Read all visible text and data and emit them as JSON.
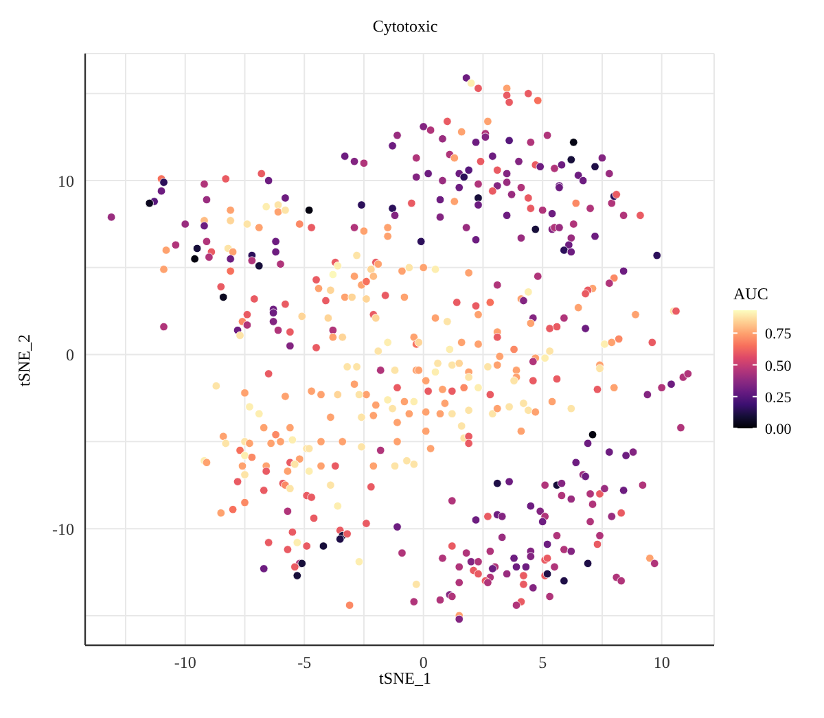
{
  "chart_data": {
    "type": "scatter",
    "title": "Cytotoxic",
    "xlabel": "tSNE_1",
    "ylabel": "tSNE_2",
    "clabel": "AUC",
    "xlim": [
      -14.2,
      12.2
    ],
    "ylim": [
      -16.7,
      17.3
    ],
    "xticks": [
      {
        "value": -12.5,
        "label": null
      },
      -10,
      {
        "value": -7.5,
        "label": null
      },
      -5,
      {
        "value": -2.5,
        "label": null
      },
      0,
      {
        "value": 2.5,
        "label": null
      },
      5,
      {
        "value": 7.5,
        "label": null
      },
      10
    ],
    "yticks": [
      {
        "value": -15,
        "label": null
      },
      -10,
      {
        "value": -5,
        "label": null
      },
      0,
      {
        "value": 5,
        "label": null
      },
      10,
      {
        "value": 15,
        "label": null
      }
    ],
    "clim": [
      0,
      0.93
    ],
    "cticks": [
      {
        "value": 0,
        "label": "0.00"
      },
      {
        "value": 0.25,
        "label": "0.25"
      },
      {
        "value": 0.5,
        "label": "0.50"
      },
      {
        "value": 0.75,
        "label": "0.75"
      }
    ],
    "grid": true,
    "marker": "circle",
    "x": [
      -13.1,
      -11.0,
      -10.9,
      -11.0,
      -11.3,
      -11.5,
      -10.0,
      -9.2,
      -9.1,
      -8.3,
      -6.8,
      -6.5,
      -5.8,
      -9.2,
      -9.2,
      -8.1,
      -8.1,
      -7.4,
      -6.9,
      -6.6,
      -6.1,
      -6.1,
      -5.8,
      -4.8,
      -5.2,
      -4.7,
      -2.6,
      -1.3,
      -1.2,
      -2.9,
      -2.5,
      -1.5,
      -1.5,
      -0.5,
      -0.1,
      -3.3,
      -2.9,
      -2.5,
      -1.3,
      -1.1,
      0,
      -0.3,
      -0.3,
      0.2,
      -10.8,
      -10.4,
      -10.9,
      -9.5,
      -9.6,
      -9.1,
      -8.9,
      -9.0,
      -8.2,
      -8.0,
      -8.1,
      -8.1,
      -7.2,
      -7.2,
      -6.9,
      -6.2,
      -6.2,
      -6.0,
      -8.5,
      -8.4,
      -7.1,
      -10.9,
      -7.4,
      -7.6,
      -7.4,
      -7.8,
      -7.7,
      -6.3,
      -6.3,
      -6.3,
      -6.1,
      -5.8,
      -5.6,
      -5.6,
      -4.5,
      -5.1,
      -4.5,
      -4.4,
      -4.1,
      -3.9,
      -3.7,
      -3.6,
      -3.8,
      -4.0,
      -3.8,
      -3.8,
      -3.4,
      -3.3,
      -3.0,
      -2.9,
      -2.8,
      -2.6,
      -2.4,
      -2.4,
      -2.2,
      -2.0,
      -1.9,
      -2.1,
      -2.1,
      -2.0,
      -1.6,
      -0.9,
      -0.6,
      -0.8,
      -1.9,
      -1.5,
      -0.4,
      -0.3,
      0,
      1.8,
      2.0,
      2.3,
      3.5,
      3.5,
      3.6,
      4.4,
      4.8,
      2.7,
      1.0,
      0.3,
      0.8,
      1.6,
      2.6,
      2.6,
      2.2,
      3.6,
      4.5,
      5.2,
      6.3,
      1.1,
      1.3,
      2.4,
      2.9,
      4.0,
      4.7,
      4.9,
      5.5,
      5.8,
      6.2,
      7.2,
      7.5,
      7.8,
      6.5,
      6.7,
      0.8,
      1.5,
      1.7,
      1.9,
      1.5,
      2.3,
      3.1,
      3.5,
      3.1,
      2.9,
      3.5,
      4.1,
      3.7,
      4.4,
      5.7,
      5.7,
      6.4,
      7.0,
      7.9,
      8.0,
      8.1,
      8.4,
      9.1,
      9.8,
      8.4,
      8.0,
      7.8,
      7.1,
      6.9,
      6.8,
      6.5,
      0.7,
      1.3,
      0.7,
      1.8,
      2.3,
      2.3,
      2.2,
      3.5,
      4.1,
      4.5,
      5.0,
      5.4,
      4.7,
      5.4,
      5.5,
      5.7,
      6.3,
      6.2,
      6.1,
      5.9,
      6.2,
      7.2,
      4.8,
      1.9,
      3.1,
      1.4,
      2.2,
      2.3,
      2.8,
      4.1,
      4.2,
      4.4,
      4.6,
      4.5,
      5.3,
      5.6,
      5.9,
      6.8,
      8.9,
      10.5,
      10.6,
      0.5,
      0.5,
      1.0,
      -0.2,
      1.6,
      2.3,
      3.1,
      3.1,
      3.8,
      5.3,
      7.6,
      7.9,
      8.2,
      9.6,
      1.1,
      -6.5,
      -8.7,
      -7.5,
      -7.3,
      -6.9,
      -5.8,
      -4.7,
      -4.3,
      -3.6,
      -3.2,
      -2.8,
      -2.9,
      -1.8,
      -1.2,
      -0.3,
      -2.4,
      -2.7,
      -1.1,
      0.1,
      0.2,
      -2.0,
      -1.5,
      -1.3,
      -0.8,
      -0.4,
      -0.6,
      -1.1,
      -2.6,
      -2.1,
      -3.9,
      -6.7,
      -5.6,
      -6.2,
      -8.4,
      -8.3,
      -7.5,
      -7.3,
      -7.7,
      -7.5,
      -7.2,
      -6.4,
      -6.0,
      -5.5,
      -4.9,
      -4.8,
      -4.3,
      -3.4,
      -2.6,
      -1.8,
      -1.1,
      0.3,
      -9.2,
      -9.1,
      -7.6,
      -7.5,
      -6.6,
      -6.6,
      -5.6,
      -5.7,
      -5.2,
      -5.4,
      -4.8,
      -4.3,
      -3.7,
      -2.1,
      -1.2,
      -0.7,
      -0.4,
      -7.8,
      -6.7,
      -5.9,
      -5.8,
      -5.6,
      -3.9,
      -4.9,
      -4.7,
      -2.2,
      -8.5,
      -8.0,
      -7.5,
      -5.7,
      -4.6,
      -3.6,
      -5.5,
      -6.5,
      -5.3,
      -5.7,
      -4.9,
      -4.2,
      -3.5,
      -3.4,
      -3.5,
      -3.2,
      -2.4,
      -1.1,
      -0.9,
      -2.7,
      -6.7,
      -5.2,
      -5.1,
      -5.4,
      -5.3,
      -0.3,
      -0.4,
      -3.1,
      4.7,
      4.6,
      5.1,
      -0.2,
      0.5,
      0.6,
      1.2,
      1.5,
      1.9,
      1.9,
      1.7,
      2.3,
      1.2,
      0.8,
      2.8,
      2.7,
      3.1,
      3.2,
      3.9,
      3.9,
      3.8,
      4.6,
      5.6,
      7.3,
      7.4,
      7.4,
      8.0,
      5.4,
      6.2,
      0.9,
      1.2,
      0.7,
      0.1,
      1.9,
      2.9,
      3.1,
      3.6,
      4.2,
      4.4,
      4.7,
      0.1,
      1.6,
      1.7,
      1.9,
      1.9,
      4.1,
      7.1,
      6.9,
      7.8,
      8.5,
      8.8,
      9.4,
      10.0,
      10.4,
      10.9,
      11.1,
      10.8,
      6.4,
      6.7,
      6.8,
      3.1,
      3.6,
      5.1,
      5.6,
      5.8,
      5.8,
      6.2,
      7.0,
      7.4,
      7.6,
      7.1,
      8.4,
      9.2,
      1.2,
      2.2,
      2.7,
      3.1,
      3.3,
      4.5,
      4.9,
      5.1,
      5.0,
      7.0,
      7.9,
      8.3,
      3.3,
      5.6,
      7.4,
      7.3,
      1.2,
      1.8,
      0.8,
      1.5,
      2.0,
      2.3,
      2.1,
      2.8,
      3.0,
      2.9,
      2.3,
      2.8,
      2.6,
      2.7,
      1.5,
      3.5,
      3.8,
      3.9,
      4.3,
      4.5,
      4.5,
      4.2,
      5.1,
      5.2,
      5.2,
      5.1,
      5.2,
      5.5,
      5.9,
      6.2,
      5.9,
      6.9,
      4.2,
      4.6,
      5.3,
      4.1,
      3.9,
      1.1,
      1.2,
      0.7,
      1.5,
      1.5,
      9.5,
      9.7,
      8.1,
      8.3
    ],
    "values": [
      7.9,
      10.1,
      9.9,
      9.4,
      8.8,
      8.7,
      7.5,
      9.8,
      8.9,
      10.1,
      10.4,
      10.0,
      9.0,
      7.7,
      7.4,
      8.3,
      7.7,
      7.5,
      7.3,
      8.5,
      8.6,
      8.2,
      8.3,
      8.3,
      7.5,
      7.3,
      8.6,
      8.4,
      8.0,
      7.3,
      7.1,
      7.3,
      6.8,
      8.7,
      6.5,
      11.4,
      11.1,
      11.0,
      12.0,
      12.6,
      13.1,
      11.3,
      10.2,
      10.4,
      6.0,
      6.3,
      4.9,
      6.1,
      5.5,
      6.5,
      5.9,
      5.6,
      6.1,
      5.9,
      5.5,
      4.8,
      5.7,
      5.4,
      5.1,
      6.5,
      5.9,
      5.2,
      3.9,
      3.3,
      3.2,
      1.6,
      2.3,
      1.9,
      1.7,
      1.4,
      1.1,
      2.6,
      2.4,
      1.9,
      1.4,
      2.9,
      1.3,
      0.5,
      0.4,
      2.2,
      4.3,
      3.8,
      3.1,
      3.7,
      5.3,
      5.1,
      4.6,
      2.1,
      1.4,
      1.0,
      1.0,
      3.3,
      3.3,
      4.5,
      5.7,
      4.0,
      4.2,
      3.2,
      4.9,
      5.3,
      5.2,
      4.5,
      2.3,
      2.1,
      3.4,
      4.8,
      5.0,
      3.3,
      0.2,
      0.7,
      1.0,
      0.6,
      5.0,
      15.9,
      15.6,
      15.3,
      15.3,
      14.9,
      14.5,
      15.0,
      14.6,
      13.4,
      13.4,
      12.9,
      12.4,
      12.8,
      12.7,
      12.5,
      12.2,
      12.3,
      12.2,
      12.6,
      12.2,
      11.5,
      11.3,
      11.1,
      11.4,
      11.1,
      10.9,
      10.8,
      10.7,
      10.9,
      11.2,
      10.8,
      11.3,
      10.4,
      10.3,
      10.0,
      10.0,
      10.4,
      10.2,
      10.6,
      9.6,
      9.8,
      10.6,
      10.4,
      9.7,
      9.4,
      9.9,
      9.6,
      9.2,
      9.0,
      9.7,
      9.6,
      8.7,
      8.4,
      8.7,
      9.1,
      9.2,
      8.0,
      8.0,
      5.7,
      4.8,
      4.4,
      4.1,
      3.8,
      3.7,
      3.5,
      2.7,
      8.9,
      8.8,
      7.9,
      7.3,
      9.0,
      8.6,
      6.6,
      8.0,
      6.7,
      8.4,
      8.3,
      8.1,
      7.2,
      7.2,
      7.3,
      7.3,
      7.5,
      6.7,
      6.3,
      6.0,
      5.9,
      6.8,
      4.5,
      4.7,
      4.0,
      3.0,
      2.8,
      2.3,
      3.0,
      3.2,
      3.1,
      3.6,
      2.1,
      1.8,
      1.5,
      1.6,
      2.1,
      1.5,
      2.3,
      2.5,
      2.5,
      4.9,
      2.1,
      1.9,
      0.7,
      0.7,
      0.6,
      1.3,
      1.0,
      0.3,
      0.2,
      0.6,
      0.7,
      0.9,
      0.7,
      0.3,
      -1.1,
      -1.8,
      -2.2,
      -3.0,
      -3.4,
      -2.4,
      -2.1,
      -2.3,
      -2.3,
      -0.7,
      -0.7,
      -1.7,
      -0.9,
      -0.9,
      -0.9,
      -2.3,
      -2.3,
      -1.9,
      -1.5,
      -2.1,
      -2.9,
      -2.6,
      -3.1,
      -2.7,
      -2.7,
      -3.4,
      -3.9,
      -3.6,
      -3.5,
      -3.6,
      -4.2,
      -4.2,
      -4.6,
      -4.7,
      -5.1,
      -5.0,
      -5.1,
      -5.5,
      -5.8,
      -5.9,
      -5.1,
      -5.0,
      -4.9,
      -5.4,
      -5.4,
      -5.0,
      -5.0,
      -5.3,
      -5.5,
      -5.0,
      -5.4,
      -6.1,
      -6.2,
      -6.4,
      -6.9,
      -6.4,
      -6.7,
      -6.2,
      -6.7,
      -6.0,
      -6.3,
      -6.7,
      -6.4,
      -6.4,
      -6.4,
      -6.4,
      -6.1,
      -6.3,
      -7.3,
      -7.8,
      -7.4,
      -7.5,
      -7.7,
      -7.5,
      -8.1,
      -8.2,
      -7.6,
      -9.1,
      -8.9,
      -8.5,
      -9.0,
      -9.4,
      -8.7,
      -10.2,
      -10.8,
      -10.8,
      -11.2,
      -11.0,
      -11.0,
      -10.1,
      -10.4,
      -10.6,
      -10.3,
      -9.7,
      -9.9,
      -11.4,
      -11.9,
      -12.3,
      -12.0,
      -12.0,
      -12.2,
      -12.7,
      -13.2,
      -14.2,
      -14.4,
      -0.2,
      -0.4,
      -0.2,
      -0.9,
      -1.0,
      -0.5,
      -0.6,
      -0.5,
      -1.0,
      -1.3,
      -1.9,
      -1.9,
      -2.1,
      -2.0,
      -2.3,
      -0.7,
      -0.6,
      -0.1,
      -0.9,
      -1.3,
      -1.5,
      -1.5,
      -1.4,
      -2.0,
      -0.6,
      -0.8,
      -1.9,
      -2.7,
      -3.1,
      -2.8,
      -3.4,
      -3.4,
      -3.3,
      -3.2,
      -3.4,
      -3.1,
      -3.0,
      -2.8,
      -3.2,
      -3.3,
      -4.4,
      -4.1,
      -4.8,
      -4.7,
      -5.1,
      -4.4,
      -4.6,
      -5.1,
      -5.6,
      -5.8,
      -5.6,
      -2.3,
      -1.9,
      -1.7,
      -1.3,
      -1.1,
      -4.2,
      -6.2,
      -6.9,
      -7.0,
      -7.4,
      -7.3,
      -7.5,
      -7.5,
      -7.4,
      -8.1,
      -8.3,
      -8.0,
      -8.0,
      -7.7,
      -8.6,
      -7.8,
      -7.5,
      -8.4,
      -9.5,
      -9.3,
      -9.2,
      -9.3,
      -8.7,
      -9.0,
      -9.3,
      -9.6,
      -9.6,
      -9.3,
      -9.1,
      -10.5,
      -10.4,
      -10.4,
      -10.9,
      -11.0,
      -11.4,
      -11.7,
      -12.2,
      -11.9,
      -11.9,
      -12.4,
      -11.3,
      -12.2,
      -12.3,
      -12.6,
      -12.8,
      -13.0,
      -13.1,
      -13.1,
      -12.6,
      -11.7,
      -12.2,
      -12.2,
      -11.3,
      -11.6,
      -12.7,
      -11.8,
      -11.7,
      -10.9,
      -12.7,
      -12.6,
      -12.2,
      -11.2,
      -11.3,
      -13.0,
      -12.0,
      -13.2,
      -13.4,
      -13.9,
      -14.2,
      -14.4,
      -13.8,
      -13.9,
      -14.1,
      -15.0,
      -15.2,
      -11.7,
      -12.0,
      -12.8,
      -13.0
    ],
    "cvalues": [
      0.4,
      0.65,
      0.15,
      0.3,
      0.25,
      0.05,
      0.4,
      0.45,
      0.4,
      0.6,
      0.6,
      0.3,
      0.3,
      0.8,
      0.3,
      0.75,
      0.85,
      0.88,
      0.75,
      0.9,
      0.88,
      0.75,
      0.88,
      0.02,
      0.7,
      0.6,
      0.15,
      0.15,
      0.35,
      0.45,
      0.75,
      0.75,
      0.75,
      0.6,
      0.15,
      0.3,
      0.35,
      0.45,
      0.3,
      0.4,
      0.35,
      0.45,
      0.35,
      0.3,
      0.75,
      0.45,
      0.75,
      0.1,
      0.02,
      0.45,
      0.6,
      0.45,
      0.88,
      0.75,
      0.3,
      0.65,
      0.15,
      0.45,
      0.1,
      0.3,
      0.3,
      0.45,
      0.6,
      0.05,
      0.6,
      0.45,
      0.6,
      0.7,
      0.45,
      0.3,
      0.88,
      0.3,
      0.3,
      0.35,
      0.45,
      0.6,
      0.6,
      0.35,
      0.6,
      0.85,
      0.6,
      0.75,
      0.6,
      0.85,
      0.6,
      0.9,
      0.92,
      0.85,
      0.45,
      0.75,
      0.85,
      0.75,
      0.85,
      0.75,
      0.88,
      0.75,
      0.65,
      0.85,
      0.85,
      0.6,
      0.75,
      0.8,
      0.6,
      0.85,
      0.6,
      0.75,
      0.88,
      0.75,
      0.88,
      0.9,
      0.75,
      0.65,
      0.75,
      0.3,
      0.9,
      0.6,
      0.75,
      0.6,
      0.6,
      0.6,
      0.65,
      0.75,
      0.6,
      0.45,
      0.4,
      0.75,
      0.45,
      0.35,
      0.3,
      0.25,
      0.45,
      0.45,
      0.03,
      0.45,
      0.75,
      0.6,
      0.3,
      0.35,
      0.6,
      0.3,
      0.45,
      0.3,
      0.1,
      0.12,
      0.35,
      0.4,
      0.3,
      0.3,
      0.4,
      0.3,
      0.15,
      0.25,
      0.3,
      0.45,
      0.6,
      0.35,
      0.35,
      0.6,
      0.4,
      0.45,
      0.4,
      0.6,
      0.3,
      0.3,
      0.7,
      0.45,
      0.45,
      0.15,
      0.6,
      0.45,
      0.6,
      0.15,
      0.3,
      0.7,
      0.45,
      0.75,
      0.6,
      0.6,
      0.75,
      0.3,
      0.75,
      0.35,
      0.4,
      0.1,
      0.3,
      0.3,
      0.3,
      0.4,
      0.6,
      0.45,
      0.3,
      0.1,
      0.35,
      0.45,
      0.4,
      0.45,
      0.4,
      0.3,
      0.15,
      0.3,
      0.3,
      0.45,
      0.75,
      0.45,
      0.6,
      0.6,
      0.75,
      0.65,
      0.75,
      0.35,
      0.9,
      0.35,
      0.75,
      0.6,
      0.6,
      0.45,
      0.3,
      0.75,
      0.88,
      0.6,
      0.9,
      0.75,
      0.88,
      0.85,
      0.75,
      0.75,
      0.75,
      0.6,
      0.7,
      0.88,
      0.9,
      0.75,
      0.7,
      0.6,
      0.9,
      0.6,
      0.88,
      0.75,
      0.9,
      0.9,
      0.75,
      0.75,
      0.75,
      0.85,
      0.88,
      0.88,
      0.75,
      0.45,
      0.88,
      0.75,
      0.75,
      0.88,
      0.6,
      0.75,
      0.6,
      0.75,
      0.9,
      0.88,
      0.75,
      0.9,
      0.75,
      0.75,
      0.88,
      0.75,
      0.75,
      0.75,
      0.75,
      0.7,
      0.75,
      0.88,
      0.88,
      0.75,
      0.65,
      0.9,
      0.7,
      0.75,
      0.75,
      0.9,
      0.88,
      0.88,
      0.75,
      0.75,
      0.88,
      0.45,
      0.75,
      0.75,
      0.9,
      0.75,
      0.75,
      0.88,
      0.75,
      0.6,
      0.6,
      0.75,
      0.75,
      0.88,
      0.9,
      0.75,
      0.6,
      0.75,
      0.88,
      0.88,
      0.88,
      0.6,
      0.6,
      0.6,
      0.7,
      0.88,
      0.88,
      0.6,
      0.6,
      0.6,
      0.75,
      0.65,
      0.7,
      0.45,
      0.6,
      0.9,
      0.6,
      0.6,
      0.9,
      0.6,
      0.6,
      0.1,
      0.6,
      0.1,
      0.12,
      0.6,
      0.6,
      0.3,
      0.45,
      0.9,
      0.3,
      0.45,
      0.1,
      0.6,
      0.1,
      0.88,
      0.45,
      0.7,
      0.75,
      0.45,
      0.9,
      0.75,
      0.9,
      0.88,
      0.88,
      0.85,
      0.75,
      0.88,
      0.7,
      0.9,
      0.6,
      0.75,
      0.6,
      0.88,
      0.75,
      0.75,
      0.75,
      0.75,
      0.88,
      0.6,
      0.6,
      0.6,
      0.75,
      0.88,
      0.75,
      0.75,
      0.88,
      0.75,
      0.88,
      0.75,
      0.75,
      0.88,
      0.88,
      0.75,
      0.88,
      0.88,
      0.88,
      0.75,
      0.75,
      0.88,
      0.88,
      0.6,
      0.6,
      0.75,
      0.02,
      0.3,
      0.3,
      0.3,
      0.35,
      0.35,
      0.45,
      0.3,
      0.45,
      0.45,
      0.45,
      0.3,
      0.4,
      0.3,
      0.12,
      0.3,
      0.45,
      0.1,
      0.35,
      0.45,
      0.4,
      0.45,
      0.6,
      0.4,
      0.45,
      0.3,
      0.45,
      0.45,
      0.3,
      0.6,
      0.3,
      0.35,
      0.3,
      0.35,
      0.45,
      0.3,
      0.45,
      0.4,
      0.6,
      0.4,
      0.45,
      0.45,
      0.6,
      0.6,
      0.45,
      0.45,
      0.45,
      0.35,
      0.45,
      0.6,
      0.45,
      0.45,
      0.3,
      0.6,
      0.45,
      0.6,
      0.45,
      0.45,
      0.4,
      0.3,
      0.3,
      0.3,
      0.35,
      0.35,
      0.6,
      0.6,
      0.6,
      0.3,
      0.6,
      0.12,
      0.45,
      0.45,
      0.35,
      0.12,
      0.12,
      0.6,
      0.35,
      0.45,
      0.6,
      0.45,
      0.35,
      0.45,
      0.45,
      0.75,
      0.35,
      0.75,
      0.45,
      0.45,
      0.45
    ]
  }
}
